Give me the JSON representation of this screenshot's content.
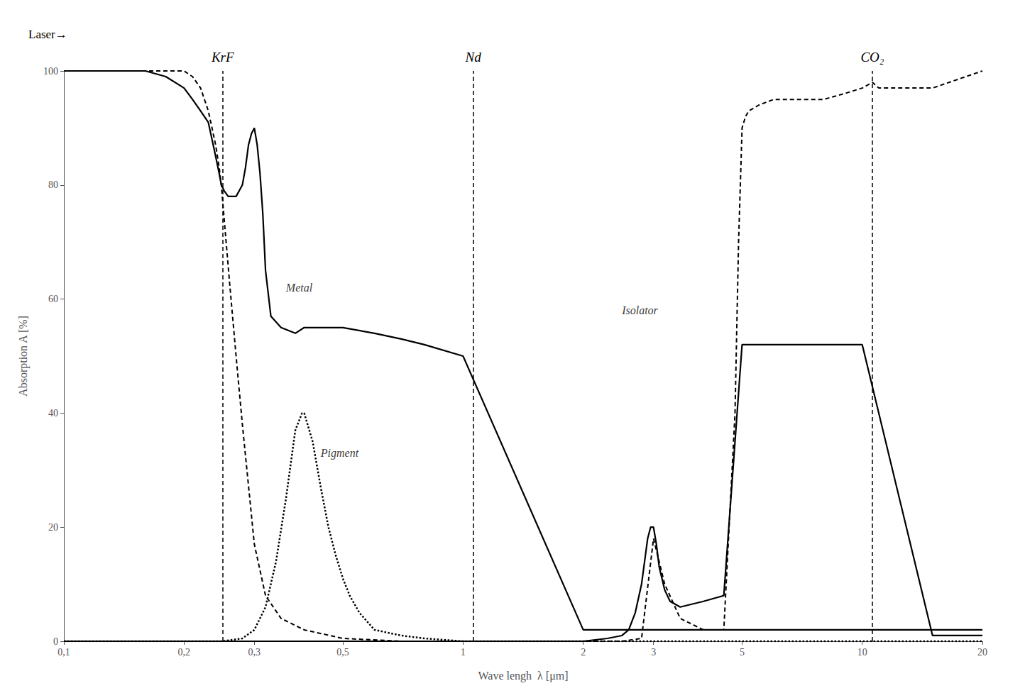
{
  "chart_data": {
    "type": "line",
    "xlabel": "Wave lengh  λ [μm]",
    "ylabel": "Absorption A [%]",
    "header_label": "Laser→",
    "log": "x",
    "grid": false,
    "xlim": [
      0.1,
      20
    ],
    "ylim": [
      0,
      100
    ],
    "xticks": [
      {
        "value": 0.1,
        "label": "0,1"
      },
      {
        "value": 0.2,
        "label": "0,2"
      },
      {
        "value": 0.3,
        "label": "0,3"
      },
      {
        "value": 0.5,
        "label": "0,5"
      },
      1,
      2,
      3,
      5,
      10,
      20
    ],
    "yticks": [
      0,
      20,
      40,
      60,
      80,
      100
    ],
    "series": [
      {
        "color": "#000000",
        "line_style": "dashed",
        "x": [
          0.1,
          0.12,
          0.14,
          0.16,
          0.17,
          0.18,
          0.19,
          0.2,
          0.21,
          0.215,
          0.22,
          0.225,
          0.23,
          0.235,
          0.24,
          0.245,
          0.248,
          0.25,
          0.26,
          0.27,
          0.28,
          0.3,
          0.32,
          0.35,
          0.4,
          0.5,
          0.7,
          1.0,
          1.5,
          2.0,
          2.5,
          2.8,
          3.0,
          3.2,
          3.5,
          4.0,
          4.5,
          4.8,
          4.9,
          5.0,
          5.1,
          5.2,
          5.5,
          6.0,
          7.0,
          8.0,
          9.0,
          10.0,
          10.6,
          11.0,
          15.0,
          20.0
        ],
        "values": [
          100,
          100,
          100,
          100,
          100,
          100,
          100,
          100,
          99,
          98,
          97,
          95,
          93,
          90,
          87,
          83,
          80,
          77,
          63,
          50,
          38,
          17,
          8,
          4,
          2,
          0.5,
          0,
          0,
          0,
          0,
          0,
          0.5,
          18,
          10,
          4,
          2,
          2,
          40,
          70,
          90,
          92,
          93,
          94,
          95,
          95,
          95,
          96,
          97,
          98,
          97,
          97,
          100
        ]
      },
      {
        "color": "#000000",
        "line_style": "solid",
        "x": [
          0.1,
          0.12,
          0.14,
          0.16,
          0.18,
          0.2,
          0.21,
          0.22,
          0.23,
          0.235,
          0.24,
          0.245,
          0.248,
          0.252,
          0.258,
          0.265,
          0.27,
          0.275,
          0.28,
          0.285,
          0.29,
          0.295,
          0.3,
          0.305,
          0.31,
          0.315,
          0.32,
          0.33,
          0.35,
          0.38,
          0.4,
          0.45,
          0.5,
          0.6,
          0.7,
          0.8,
          1.0,
          2.0,
          3.0,
          5.0,
          10.0,
          20.0
        ],
        "values": [
          100,
          100,
          100,
          100,
          99,
          97,
          95,
          93,
          91,
          88,
          85,
          82,
          80,
          79,
          78,
          78,
          78,
          79,
          80,
          83,
          87,
          89,
          90,
          87,
          82,
          75,
          65,
          57,
          55,
          54,
          55,
          55,
          55,
          54,
          53,
          52,
          50,
          2,
          2,
          2,
          2,
          2
        ]
      },
      {
        "color": "#000000",
        "line_style": "dotted",
        "x": [
          0.1,
          0.2,
          0.25,
          0.28,
          0.3,
          0.32,
          0.34,
          0.36,
          0.38,
          0.395,
          0.4,
          0.42,
          0.44,
          0.46,
          0.48,
          0.5,
          0.52,
          0.55,
          0.6,
          0.7,
          0.8,
          1.0,
          2.0,
          5.0,
          10.0,
          20.0
        ],
        "values": [
          0,
          0,
          0,
          0.5,
          2,
          6,
          14,
          25,
          37,
          40,
          40,
          35,
          27,
          20,
          15,
          11,
          8,
          5,
          2,
          1,
          0.5,
          0,
          0,
          0,
          0,
          0
        ]
      },
      {
        "color": "#000000",
        "line_style": "solid",
        "x": [
          0.1,
          0.2,
          0.5,
          1.0,
          1.5,
          2.0,
          2.3,
          2.5,
          2.6,
          2.7,
          2.8,
          2.9,
          2.95,
          3.0,
          3.05,
          3.1,
          3.2,
          3.3,
          3.5,
          4.0,
          4.5,
          5.0,
          5.5,
          6.0,
          7.0,
          8.0,
          9.0,
          10.0,
          15.0,
          20.0
        ],
        "values": [
          0,
          0,
          0,
          0,
          0,
          0,
          0.5,
          1,
          2,
          5,
          10,
          18,
          20,
          20,
          17,
          13,
          9,
          7,
          6,
          7,
          8,
          52,
          52,
          52,
          52,
          52,
          52,
          52,
          1,
          1
        ]
      }
    ],
    "vlines": [
      {
        "x": 0.248,
        "label": "KrF",
        "color": "#000000",
        "line_style": "dashed"
      },
      {
        "x": 1.064,
        "label": "Nd",
        "color": "#000000",
        "line_style": "dashed"
      },
      {
        "x": 10.6,
        "label": "CO₂",
        "color": "#000000",
        "line_style": "dashed"
      }
    ],
    "annotations": [
      {
        "text": "Metal",
        "x": 0.36,
        "y": 61
      },
      {
        "text": "Pigment",
        "x": 0.44,
        "y": 32
      },
      {
        "text": "Isolator",
        "x": 2.5,
        "y": 57
      }
    ]
  }
}
